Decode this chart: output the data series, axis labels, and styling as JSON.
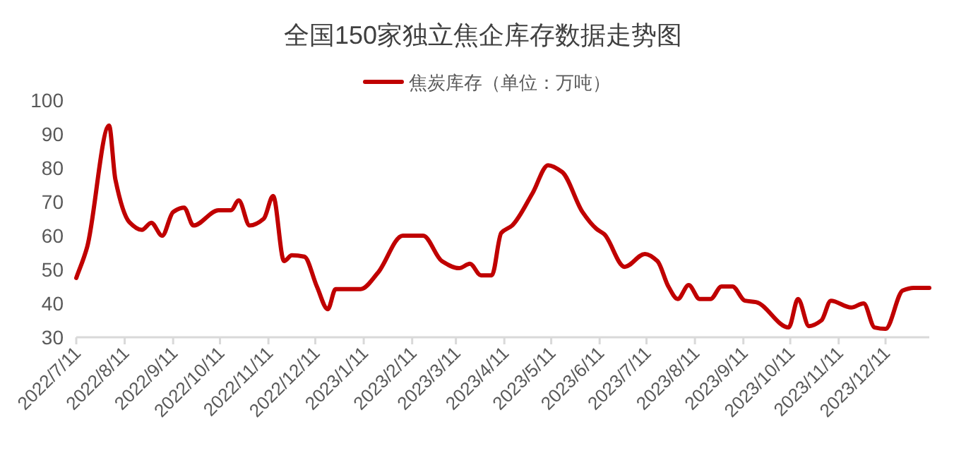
{
  "chart_data": {
    "type": "line",
    "title": "全国150家独立焦企库存数据走势图",
    "legend": "top",
    "grid": false,
    "marker": "none",
    "line_style": "solid",
    "x": [
      "2022-07-11",
      "2022-07-18",
      "2022-08-01",
      "2022-08-05",
      "2022-08-14",
      "2022-08-22",
      "2022-08-28",
      "2022-09-04",
      "2022-09-11",
      "2022-09-18",
      "2022-09-24",
      "2022-10-10",
      "2022-10-18",
      "2022-10-23",
      "2022-10-30",
      "2022-11-08",
      "2022-11-14",
      "2022-11-21",
      "2022-11-26",
      "2022-12-04",
      "2022-12-12",
      "2022-12-19",
      "2022-12-24",
      "2023-01-09",
      "2023-01-20",
      "2023-02-05",
      "2023-02-18",
      "2023-03-02",
      "2023-03-13",
      "2023-03-20",
      "2023-03-27",
      "2023-04-03",
      "2023-04-09",
      "2023-04-16",
      "2023-04-29",
      "2023-05-09",
      "2023-05-18",
      "2023-05-31",
      "2023-06-09",
      "2023-06-14",
      "2023-06-27",
      "2023-07-10",
      "2023-07-18",
      "2023-07-25",
      "2023-07-31",
      "2023-08-07",
      "2023-08-14",
      "2023-08-21",
      "2023-08-28",
      "2023-09-04",
      "2023-09-12",
      "2023-09-19",
      "2023-10-10",
      "2023-10-16",
      "2023-10-23",
      "2023-10-31",
      "2023-11-06",
      "2023-11-19",
      "2023-11-27",
      "2023-12-04",
      "2023-12-11",
      "2023-12-22",
      "2023-12-29",
      "2024-01-08"
    ],
    "series": [
      {
        "name": "焦炭库存（单位：万吨）",
        "color": "#c00000",
        "values": [
          47.5,
          56.7,
          92.5,
          76.7,
          64,
          61.7,
          63.8,
          60,
          67,
          68.3,
          63,
          67.5,
          67.5,
          70.4,
          63,
          65,
          71.7,
          52.5,
          54.2,
          53.8,
          45,
          38.3,
          44.2,
          44.2,
          49,
          60,
          60,
          52.5,
          50.4,
          51.7,
          48.3,
          48.3,
          60.8,
          63,
          72.5,
          80.8,
          78.8,
          67,
          62,
          60.4,
          50.8,
          54.6,
          52.5,
          45,
          41.3,
          45.4,
          41.3,
          41.3,
          45,
          45,
          40.8,
          40.4,
          32.9,
          41.3,
          33.3,
          35,
          40.8,
          38.8,
          40,
          32.9,
          32.5,
          43.8,
          44.6,
          44.6
        ]
      }
    ],
    "xlim": [
      "2022-07-11",
      "2024-01-08"
    ],
    "xticks": [
      {
        "value": "2022-07-11",
        "label": "2022/7/11"
      },
      {
        "value": "2022-08-11",
        "label": "2022/8/11"
      },
      {
        "value": "2022-09-11",
        "label": "2022/9/11"
      },
      {
        "value": "2022-10-11",
        "label": "2022/10/11"
      },
      {
        "value": "2022-11-11",
        "label": "2022/11/11"
      },
      {
        "value": "2022-12-11",
        "label": "2022/12/11"
      },
      {
        "value": "2023-01-11",
        "label": "2023/1/11"
      },
      {
        "value": "2023-02-11",
        "label": "2023/2/11"
      },
      {
        "value": "2023-03-11",
        "label": "2023/3/11"
      },
      {
        "value": "2023-04-11",
        "label": "2023/4/11"
      },
      {
        "value": "2023-05-11",
        "label": "2023/5/11"
      },
      {
        "value": "2023-06-11",
        "label": "2023/6/11"
      },
      {
        "value": "2023-07-11",
        "label": "2023/7/11"
      },
      {
        "value": "2023-08-11",
        "label": "2023/8/11"
      },
      {
        "value": "2023-09-11",
        "label": "2023/9/11"
      },
      {
        "value": "2023-10-11",
        "label": "2023/10/11"
      },
      {
        "value": "2023-11-11",
        "label": "2023/11/11"
      },
      {
        "value": "2023-12-11",
        "label": "2023/12/11"
      }
    ],
    "ylim": [
      30,
      100
    ],
    "yticks": [
      30,
      40,
      50,
      60,
      70,
      80,
      90,
      100
    ]
  }
}
